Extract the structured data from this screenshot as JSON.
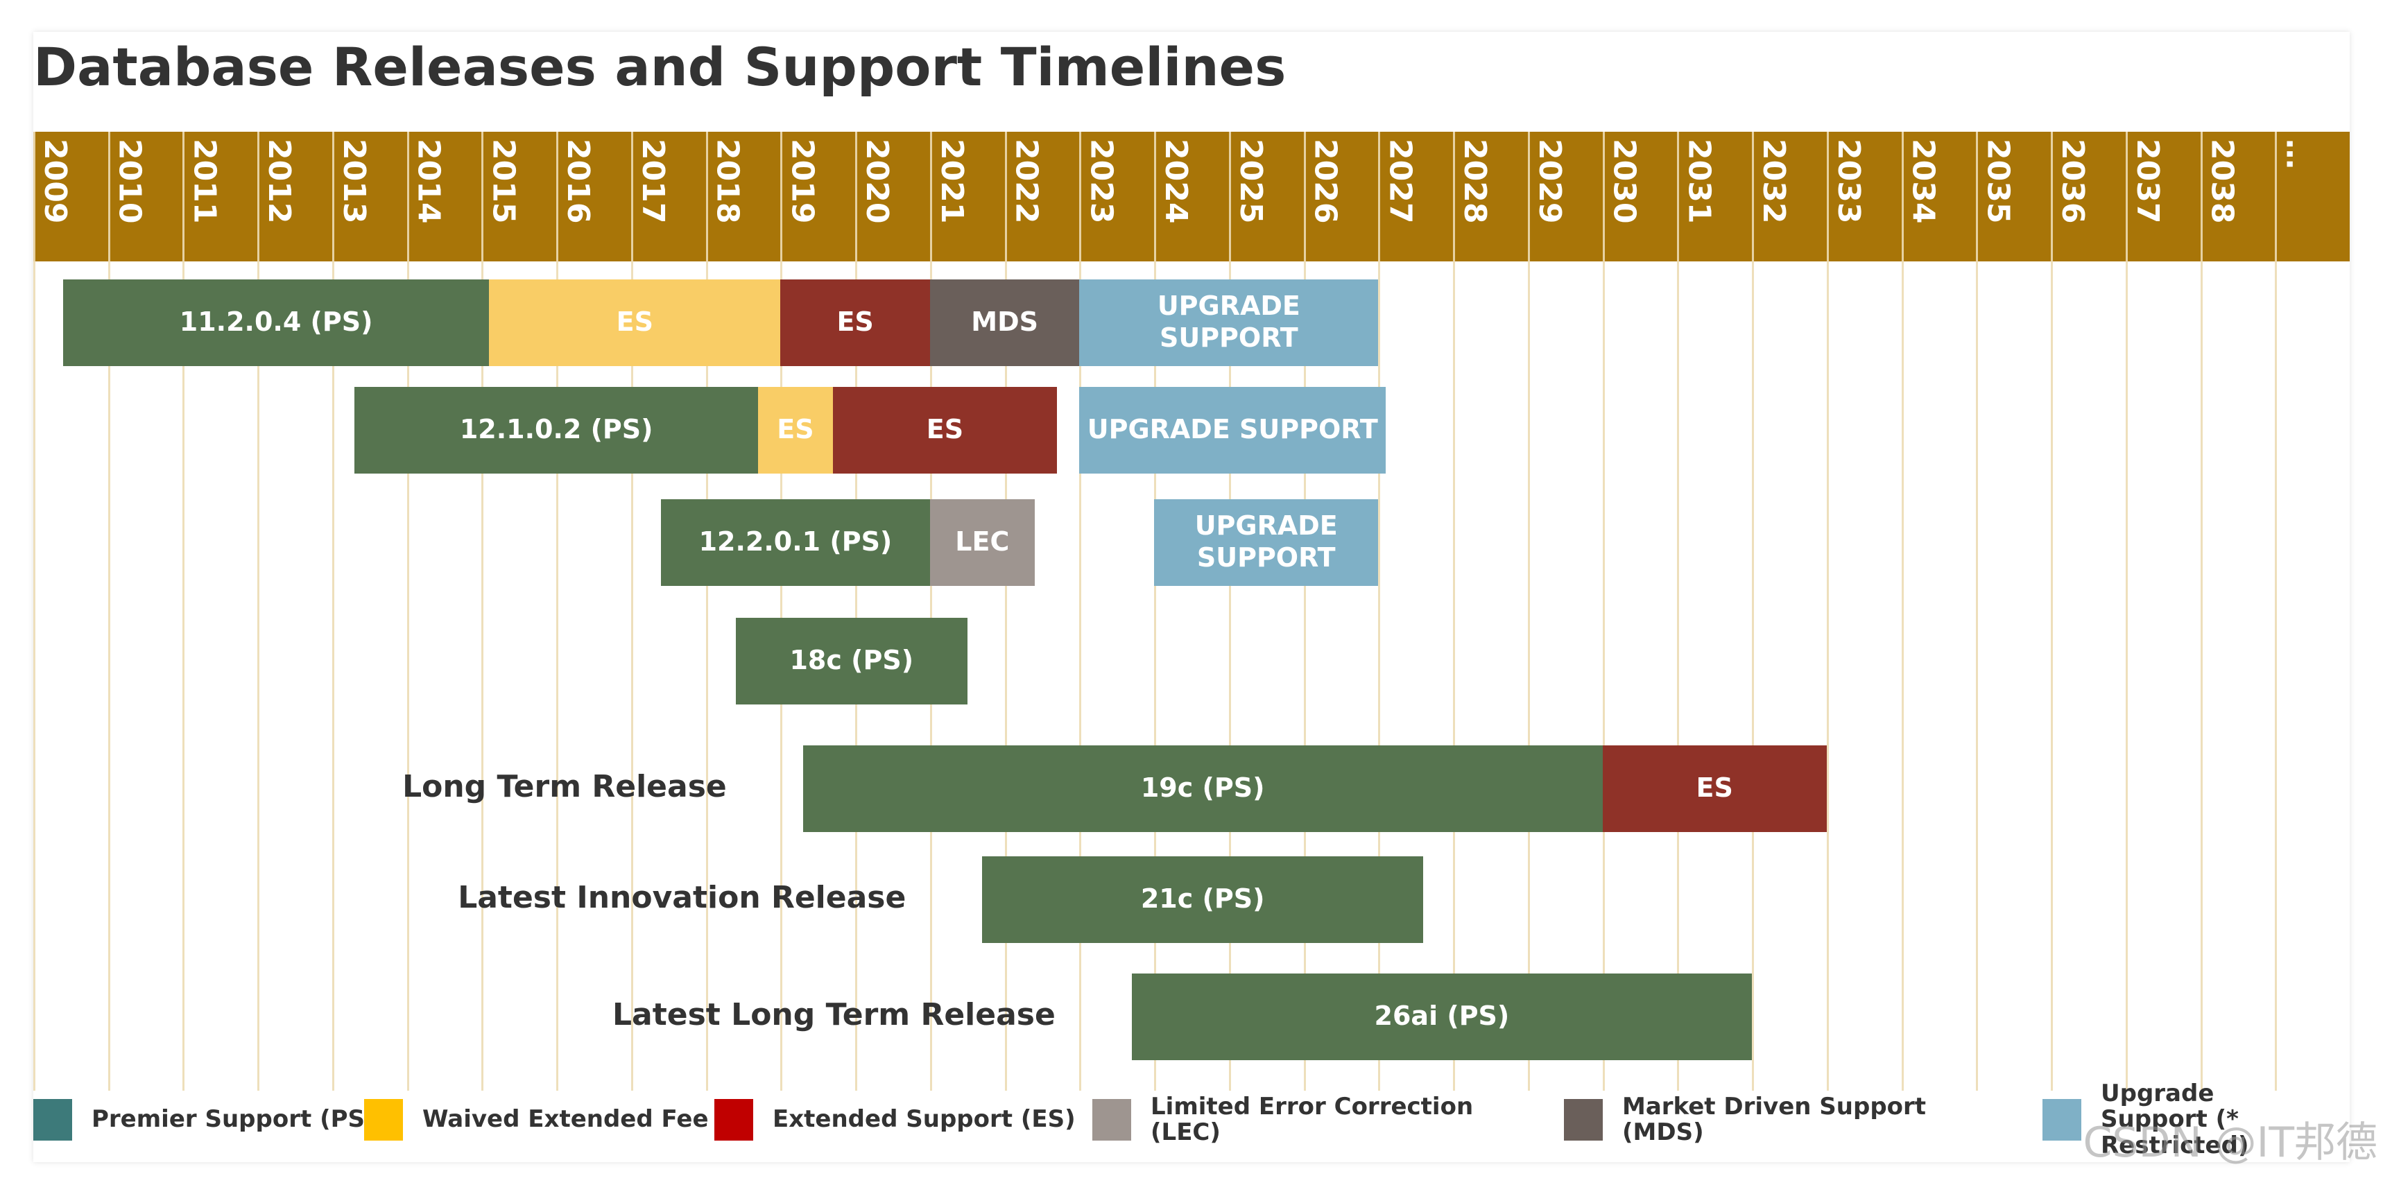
{
  "chart_data": {
    "type": "timeline",
    "title": "Database Releases and Support Timelines",
    "xlim": [
      2009,
      2040
    ],
    "xticks": [
      2009,
      2010,
      2011,
      2012,
      2013,
      2014,
      2015,
      2016,
      2017,
      2018,
      2019,
      2020,
      2021,
      2022,
      2023,
      2024,
      2025,
      2026,
      2027,
      2028,
      2029,
      2030,
      2031,
      2032,
      2033,
      2034,
      2035,
      2036,
      2037,
      2038,
      {
        "value": 2039,
        "label": "…"
      }
    ],
    "header_color": "#a87508",
    "grid_color": "#ecdcb4",
    "rows": [
      {
        "segments": [
          {
            "label": "11.2.0.4 (PS)",
            "start": 2009.4,
            "end": 2015.1,
            "color": "#56744f"
          },
          {
            "label": "ES",
            "start": 2015.1,
            "end": 2019,
            "color": "#f9cd66"
          },
          {
            "label": "ES",
            "start": 2019,
            "end": 2021,
            "color": "#8f3228"
          },
          {
            "label": "MDS",
            "start": 2021,
            "end": 2023,
            "color": "#6a5f5a"
          },
          {
            "label": "UPGRADE SUPPORT",
            "start": 2023,
            "end": 2027,
            "color": "#7fb0c6"
          }
        ]
      },
      {
        "segments": [
          {
            "label": "12.1.0.2 (PS)",
            "start": 2013.3,
            "end": 2018.7,
            "color": "#56744f"
          },
          {
            "label": "ES",
            "start": 2018.7,
            "end": 2019.7,
            "color": "#f9cd66"
          },
          {
            "label": "ES",
            "start": 2019.7,
            "end": 2022.7,
            "color": "#8f3228"
          },
          {
            "label": "UPGRADE SUPPORT",
            "start": 2023,
            "end": 2027.1,
            "color": "#7fb0c6"
          }
        ]
      },
      {
        "segments": [
          {
            "label": "12.2.0.1 (PS)",
            "start": 2017.4,
            "end": 2021,
            "color": "#56744f"
          },
          {
            "label": "LEC",
            "start": 2021,
            "end": 2022.4,
            "color": "#9e9590"
          },
          {
            "label": "UPGRADE SUPPORT",
            "start": 2024,
            "end": 2027,
            "color": "#7fb0c6"
          }
        ]
      },
      {
        "segments": [
          {
            "label": "18c (PS)",
            "start": 2018.4,
            "end": 2021.5,
            "color": "#56744f"
          }
        ]
      },
      {
        "label": "Long Term Release",
        "segments": [
          {
            "label": "19c (PS)",
            "start": 2019.3,
            "end": 2030,
            "color": "#56744f"
          },
          {
            "label": "ES",
            "start": 2030,
            "end": 2033,
            "color": "#8f3228"
          }
        ]
      },
      {
        "label": "Latest Innovation Release",
        "segments": [
          {
            "label": "21c (PS)",
            "start": 2021.7,
            "end": 2027.6,
            "color": "#56744f"
          }
        ]
      },
      {
        "label": "Latest Long Term Release",
        "segments": [
          {
            "label": "26ai (PS)",
            "start": 2023.7,
            "end": 2032,
            "color": "#56744f"
          }
        ]
      }
    ],
    "legend": [
      {
        "label": "Premier Support (PS)",
        "color": "#3d7a7a"
      },
      {
        "label": "Waived Extended Fee",
        "color": "#ffc000"
      },
      {
        "label": "Extended Support (ES)",
        "color": "#c00000"
      },
      {
        "label": "Limited Error Correction (LEC)",
        "color": "#9e9590"
      },
      {
        "label": "Market Driven Support (MDS)",
        "color": "#6a5f5a"
      },
      {
        "label": "Upgrade Support (* Restricted)",
        "color": "#7fb0c6"
      }
    ]
  },
  "watermark": "CSDN @IT邦德"
}
